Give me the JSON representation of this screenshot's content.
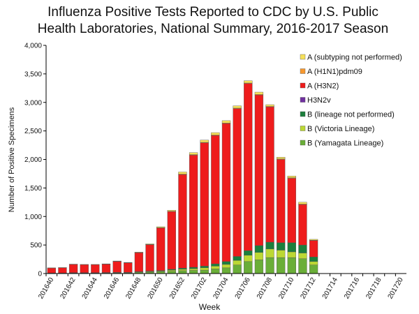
{
  "chart_data": {
    "type": "stacked-bar",
    "title": "Influenza Positive Tests Reported to CDC by U.S. Public Health Laboratories, National Summary, 2016-2017 Season",
    "x_label": "Week",
    "y_label": "Number of Positive Specimens",
    "categories": [
      "201640",
      null,
      "201642",
      null,
      "201644",
      null,
      "201646",
      null,
      "201648",
      null,
      "201650",
      null,
      "201652",
      null,
      "201702",
      null,
      "201704",
      null,
      "201706",
      null,
      "201708",
      null,
      "201710",
      null,
      "201712",
      null,
      "201714",
      null,
      "201716",
      null,
      "201718",
      null,
      "201720"
    ],
    "ylim": [
      0,
      4000
    ],
    "yticks": [
      0,
      500,
      {
        "value": 1000,
        "label": "1,000"
      },
      {
        "value": 1500,
        "label": "1,500"
      },
      {
        "value": 2000,
        "label": "2,000"
      },
      {
        "value": 2500,
        "label": "2,500"
      },
      {
        "value": 3000,
        "label": "3,000"
      },
      {
        "value": 3500,
        "label": "3,500"
      },
      {
        "value": 4000,
        "label": "4,000"
      }
    ],
    "series": [
      {
        "name": "B (Yamagata Lineage)",
        "color": "#6aae38",
        "values": [
          5,
          5,
          8,
          8,
          8,
          10,
          12,
          12,
          20,
          25,
          30,
          40,
          50,
          55,
          60,
          80,
          100,
          150,
          210,
          240,
          280,
          280,
          280,
          260,
          150,
          null,
          null,
          null,
          null,
          null,
          null,
          null,
          null
        ]
      },
      {
        "name": "B (Victoria Lineage)",
        "color": "#bcd834",
        "values": [
          3,
          3,
          4,
          4,
          5,
          5,
          6,
          6,
          8,
          10,
          12,
          20,
          25,
          30,
          40,
          50,
          60,
          80,
          110,
          130,
          150,
          130,
          100,
          100,
          60,
          null,
          null,
          null,
          null,
          null,
          null,
          null,
          null
        ]
      },
      {
        "name": "B (lineage not performed)",
        "color": "#1b7f3c",
        "values": [
          2,
          2,
          3,
          3,
          3,
          3,
          4,
          4,
          6,
          8,
          10,
          15,
          20,
          25,
          30,
          40,
          50,
          70,
          80,
          120,
          120,
          130,
          160,
          140,
          80,
          null,
          null,
          null,
          null,
          null,
          null,
          null,
          null
        ]
      },
      {
        "name": "H3N2v",
        "color": "#7030a0",
        "values": [
          0,
          0,
          0,
          0,
          0,
          0,
          0,
          0,
          0,
          0,
          0,
          0,
          0,
          0,
          0,
          0,
          0,
          0,
          0,
          0,
          0,
          0,
          0,
          0,
          0,
          null,
          null,
          null,
          null,
          null,
          null,
          null,
          null
        ]
      },
      {
        "name": "A (H3N2)",
        "color": "#ee1c1c",
        "values": [
          85,
          90,
          145,
          140,
          139,
          146,
          190,
          165,
          330,
          462,
          748,
          1010,
          1640,
          1965,
          2160,
          2250,
          2420,
          2590,
          2930,
          2640,
          2370,
          1460,
          1130,
          710,
          290,
          null,
          null,
          null,
          null,
          null,
          null,
          null,
          null
        ]
      },
      {
        "name": "A (H1N1)pdm09",
        "color": "#f7982e",
        "values": [
          2,
          2,
          2,
          2,
          2,
          3,
          3,
          3,
          4,
          5,
          5,
          5,
          10,
          10,
          10,
          10,
          10,
          10,
          10,
          10,
          10,
          10,
          10,
          10,
          5,
          null,
          null,
          null,
          null,
          null,
          null,
          null,
          null
        ]
      },
      {
        "name": "A (subtyping not performed)",
        "color": "#f6e15a",
        "values": [
          3,
          3,
          3,
          3,
          3,
          3,
          5,
          5,
          7,
          10,
          15,
          20,
          35,
          35,
          40,
          40,
          40,
          40,
          40,
          40,
          30,
          30,
          30,
          30,
          15,
          null,
          null,
          null,
          null,
          null,
          null,
          null,
          null
        ]
      }
    ]
  }
}
